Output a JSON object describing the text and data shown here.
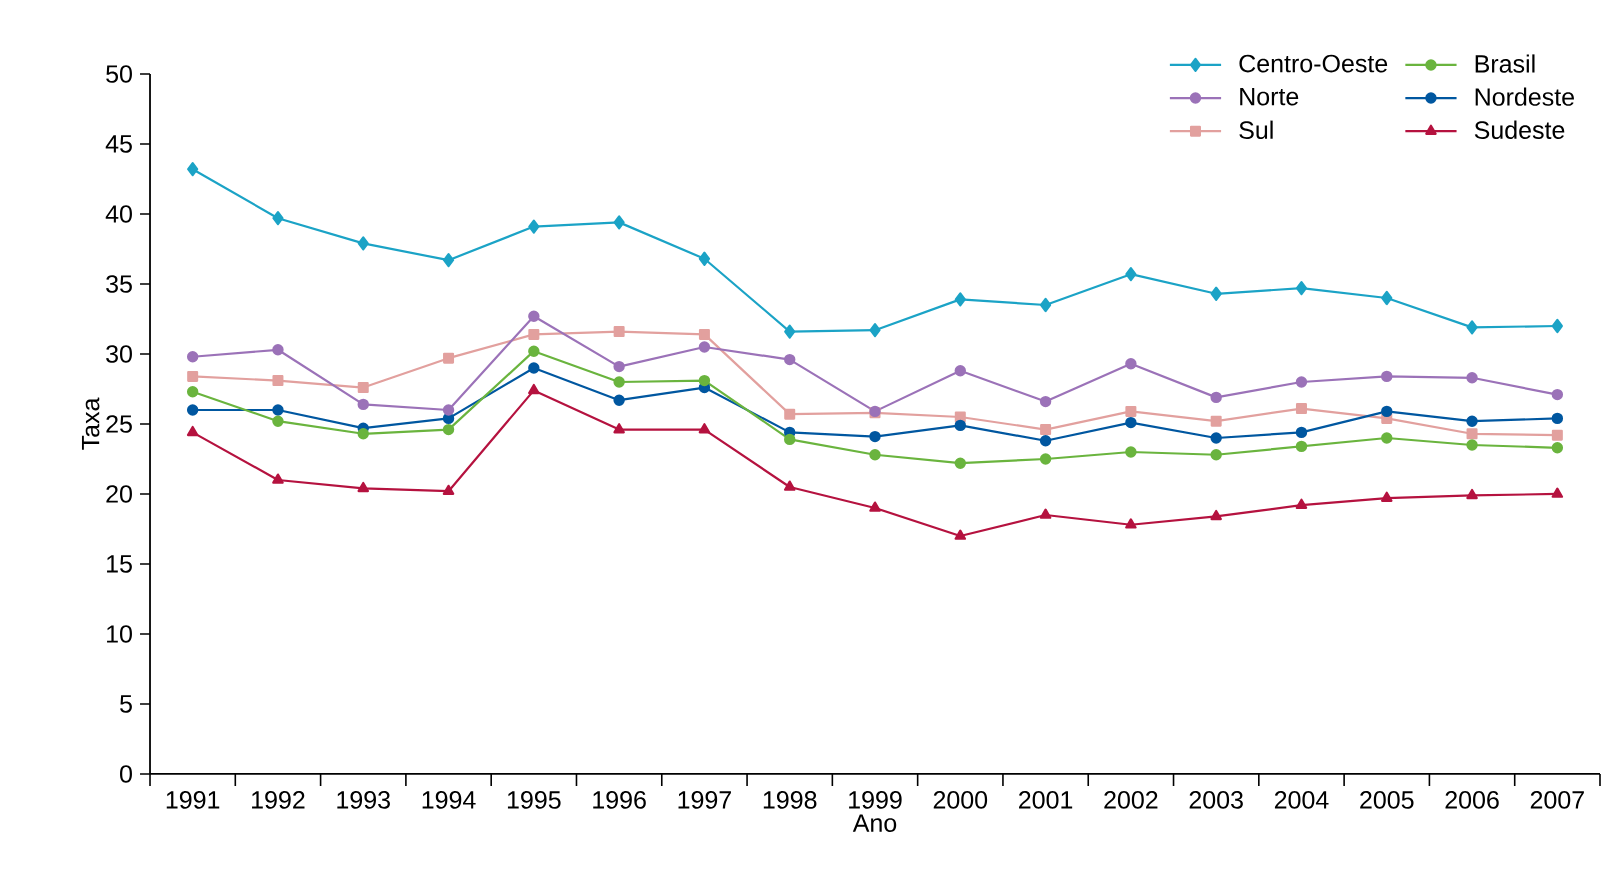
{
  "chart_data": {
    "type": "line",
    "xlabel": "Ano",
    "ylabel": "Taxa",
    "categories": [
      "1991",
      "1992",
      "1993",
      "1994",
      "1995",
      "1996",
      "1997",
      "1998",
      "1999",
      "2000",
      "2001",
      "2002",
      "2003",
      "2004",
      "2005",
      "2006",
      "2007"
    ],
    "ylim": [
      0,
      50
    ],
    "yticks": [
      0,
      5,
      10,
      15,
      20,
      25,
      30,
      35,
      40,
      45,
      50
    ],
    "grid": false,
    "legend": "top right",
    "line_style": "solid",
    "series": [
      {
        "name": "Centro-Oeste",
        "color": "#1ba3c6",
        "marker": "diamond",
        "values": [
          43.2,
          39.7,
          37.9,
          36.7,
          39.1,
          39.4,
          36.8,
          31.6,
          31.7,
          33.9,
          33.5,
          35.7,
          34.3,
          34.7,
          34.0,
          31.9,
          32.0
        ]
      },
      {
        "name": "Brasil",
        "color": "#6ab43e",
        "marker": "circle",
        "values": [
          27.3,
          25.2,
          24.3,
          24.6,
          30.2,
          28.0,
          28.1,
          23.9,
          22.8,
          22.2,
          22.5,
          23.0,
          22.8,
          23.4,
          24.0,
          23.5,
          23.3
        ]
      },
      {
        "name": "Norte",
        "color": "#9b72b8",
        "marker": "circle",
        "values": [
          29.8,
          30.3,
          26.4,
          26.0,
          32.7,
          29.1,
          30.5,
          29.6,
          25.9,
          28.8,
          26.6,
          29.3,
          26.9,
          28.0,
          28.4,
          28.3,
          27.1
        ]
      },
      {
        "name": "Nordeste",
        "color": "#0057a0",
        "marker": "circle",
        "values": [
          26.0,
          26.0,
          24.7,
          25.4,
          29.0,
          26.7,
          27.6,
          24.4,
          24.1,
          24.9,
          23.8,
          25.1,
          24.0,
          24.4,
          25.9,
          25.2,
          25.4
        ]
      },
      {
        "name": "Sul",
        "color": "#e2a09e",
        "marker": "square",
        "values": [
          28.4,
          28.1,
          27.6,
          29.7,
          31.4,
          31.6,
          31.4,
          25.7,
          25.8,
          25.5,
          24.6,
          25.9,
          25.2,
          26.1,
          25.4,
          24.3,
          24.2
        ]
      },
      {
        "name": "Sudeste",
        "color": "#b5123f",
        "marker": "triangle",
        "values": [
          24.4,
          21.0,
          20.4,
          20.2,
          27.4,
          24.6,
          24.6,
          20.5,
          19.0,
          17.0,
          18.5,
          17.8,
          18.4,
          19.2,
          19.7,
          19.9,
          20.0
        ]
      }
    ]
  }
}
